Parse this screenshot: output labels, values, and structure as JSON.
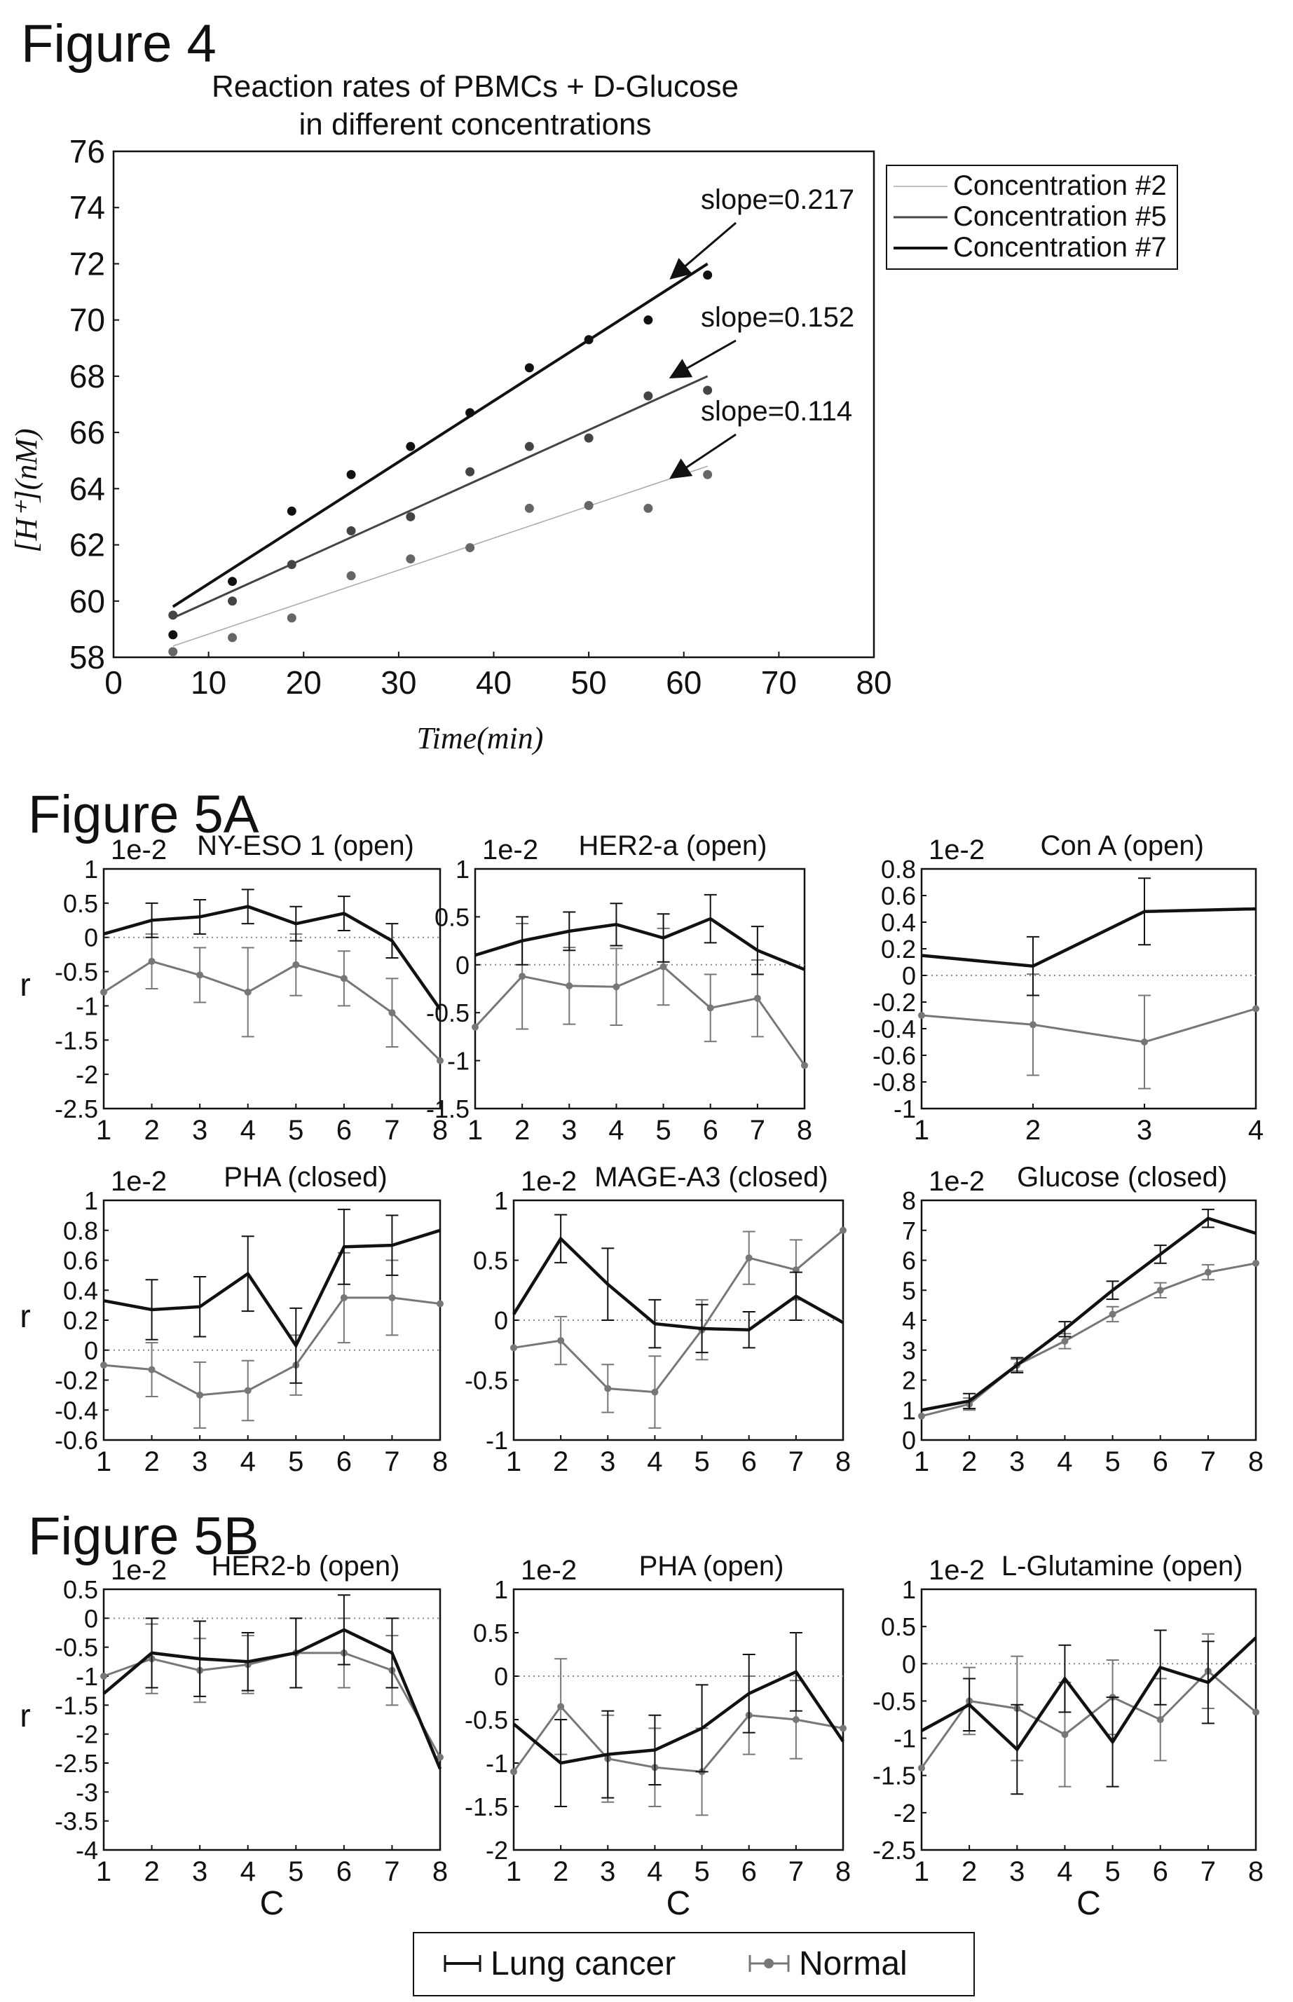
{
  "figure_labels": {
    "fig4": "Figure 4",
    "fig5a": "Figure 5A",
    "fig5b": "Figure 5B"
  },
  "fig4": {
    "title_line1": "Reaction rates of PBMCs + D-Glucose",
    "title_line2": "in different concentrations",
    "ylabel": "[H⁺](nM)",
    "xlabel": "Time(min)",
    "colors": {
      "c2": "#aaaaaa",
      "c5": "#444444",
      "c7": "#111111"
    }
  },
  "fig5": {
    "ylabel": "r",
    "xlabel": "C",
    "scale_label": "1e-2",
    "colors": {
      "lung": "#111111",
      "normal": "#777777"
    }
  },
  "legend": {
    "lung": "Lung cancer",
    "normal": "Normal"
  },
  "chart_data": [
    {
      "id": "fig4",
      "type": "scatter",
      "title": "Reaction rates of PBMCs + D-Glucose in different concentrations",
      "xlabel": "Time(min)",
      "ylabel": "[H+](nM)",
      "xlim": [
        0,
        80
      ],
      "ylim": [
        58,
        76
      ],
      "xticks": [
        0,
        10,
        20,
        30,
        40,
        50,
        60,
        70,
        80
      ],
      "yticks": [
        58,
        60,
        62,
        64,
        66,
        68,
        70,
        72,
        74,
        76
      ],
      "legend_position": "right",
      "series": [
        {
          "name": "Concentration #2",
          "x": [
            6.25,
            12.5,
            18.75,
            25,
            31.25,
            37.5,
            43.75,
            50,
            56.25,
            62.5
          ],
          "y": [
            58.2,
            58.7,
            59.4,
            60.9,
            61.5,
            61.9,
            63.3,
            63.4,
            63.3,
            64.5
          ],
          "fit": {
            "x": [
              6.25,
              62.5
            ],
            "y": [
              58.4,
              64.8
            ]
          },
          "slope_label": "slope=0.114"
        },
        {
          "name": "Concentration #5",
          "x": [
            6.25,
            12.5,
            18.75,
            25,
            31.25,
            37.5,
            43.75,
            50,
            56.25,
            62.5
          ],
          "y": [
            59.5,
            60.0,
            61.3,
            62.5,
            63.0,
            64.6,
            65.5,
            65.8,
            67.3,
            67.5
          ],
          "fit": {
            "x": [
              6.25,
              62.5
            ],
            "y": [
              59.4,
              68.0
            ]
          },
          "slope_label": "slope=0.152"
        },
        {
          "name": "Concentration #7",
          "x": [
            6.25,
            12.5,
            18.75,
            25,
            31.25,
            37.5,
            43.75,
            50,
            56.25,
            62.5
          ],
          "y": [
            58.8,
            60.7,
            63.2,
            64.5,
            65.5,
            66.7,
            68.3,
            69.3,
            70.0,
            71.6
          ],
          "fit": {
            "x": [
              6.25,
              62.5
            ],
            "y": [
              59.8,
              72.0
            ]
          },
          "slope_label": "slope=0.217"
        }
      ]
    },
    {
      "id": "nyeso",
      "type": "line",
      "title": "NY-ESO 1 (open)",
      "ylim": [
        -2.5,
        1.0
      ],
      "yticks": [
        1.0,
        0.5,
        0.0,
        -0.5,
        -1.0,
        -1.5,
        -2.0,
        -2.5
      ],
      "xticks": [
        1,
        2,
        3,
        4,
        5,
        6,
        7,
        8
      ],
      "xlim": [
        1,
        8
      ],
      "series": [
        {
          "name": "Lung cancer",
          "x": [
            1,
            2,
            3,
            4,
            5,
            6,
            7,
            8
          ],
          "y": [
            0.05,
            0.25,
            0.3,
            0.45,
            0.2,
            0.35,
            -0.05,
            -1.05
          ],
          "err": [
            0,
            0.25,
            0.25,
            0.25,
            0.25,
            0.25,
            0.25,
            0
          ]
        },
        {
          "name": "Normal",
          "x": [
            1,
            2,
            3,
            4,
            5,
            6,
            7,
            8
          ],
          "y": [
            -0.8,
            -0.35,
            -0.55,
            -0.8,
            -0.4,
            -0.6,
            -1.1,
            -1.8
          ],
          "err": [
            0,
            0.4,
            0.4,
            0.65,
            0.45,
            0.4,
            0.5,
            0
          ]
        }
      ]
    },
    {
      "id": "her2a",
      "type": "line",
      "title": "HER2-a (open)",
      "ylim": [
        -1.5,
        1.0
      ],
      "yticks": [
        1.0,
        0.5,
        0.0,
        -0.5,
        -1.0,
        -1.5
      ],
      "xticks": [
        1,
        2,
        3,
        4,
        5,
        6,
        7,
        8
      ],
      "xlim": [
        1,
        8
      ],
      "series": [
        {
          "name": "Lung cancer",
          "x": [
            1,
            2,
            3,
            4,
            5,
            6,
            7,
            8
          ],
          "y": [
            0.1,
            0.25,
            0.35,
            0.42,
            0.28,
            0.48,
            0.15,
            -0.05
          ],
          "err": [
            0,
            0.25,
            0.2,
            0.22,
            0.25,
            0.25,
            0.25,
            0
          ]
        },
        {
          "name": "Normal",
          "x": [
            1,
            2,
            3,
            4,
            5,
            6,
            7,
            8
          ],
          "y": [
            -0.65,
            -0.12,
            -0.22,
            -0.23,
            -0.02,
            -0.45,
            -0.35,
            -1.05
          ],
          "err": [
            0,
            0.55,
            0.4,
            0.4,
            0.4,
            0.35,
            0.4,
            0
          ]
        }
      ]
    },
    {
      "id": "cona",
      "type": "line",
      "title": "Con A (open)",
      "ylim": [
        -1.0,
        0.8
      ],
      "yticks": [
        0.8,
        0.6,
        0.4,
        0.2,
        0.0,
        -0.2,
        -0.4,
        -0.6,
        -0.8,
        -1.0
      ],
      "xticks": [
        1,
        2,
        3,
        4
      ],
      "xlim": [
        1,
        4
      ],
      "series": [
        {
          "name": "Lung cancer",
          "x": [
            1,
            2,
            3,
            4
          ],
          "y": [
            0.15,
            0.07,
            0.48,
            0.5
          ],
          "err": [
            0,
            0.22,
            0.25,
            0
          ]
        },
        {
          "name": "Normal",
          "x": [
            1,
            2,
            3,
            4
          ],
          "y": [
            -0.3,
            -0.37,
            -0.5,
            -0.25
          ],
          "err": [
            0,
            0.38,
            0.35,
            0
          ]
        }
      ]
    },
    {
      "id": "pha_closed",
      "type": "line",
      "title": "PHA (closed)",
      "ylim": [
        -0.6,
        1.0
      ],
      "yticks": [
        1.0,
        0.8,
        0.6,
        0.4,
        0.2,
        0.0,
        -0.2,
        -0.4,
        -0.6
      ],
      "xticks": [
        1,
        2,
        3,
        4,
        5,
        6,
        7,
        8
      ],
      "xlim": [
        1,
        8
      ],
      "series": [
        {
          "name": "Lung cancer",
          "x": [
            1,
            2,
            3,
            4,
            5,
            6,
            7,
            8
          ],
          "y": [
            0.33,
            0.27,
            0.29,
            0.51,
            0.03,
            0.69,
            0.7,
            0.8
          ],
          "err": [
            0,
            0.2,
            0.2,
            0.25,
            0.25,
            0.25,
            0.2,
            0
          ]
        },
        {
          "name": "Normal",
          "x": [
            1,
            2,
            3,
            4,
            5,
            6,
            7,
            8
          ],
          "y": [
            -0.1,
            -0.13,
            -0.3,
            -0.27,
            -0.1,
            0.35,
            0.35,
            0.31
          ],
          "err": [
            0,
            0.18,
            0.22,
            0.2,
            0.2,
            0.3,
            0.25,
            0
          ]
        }
      ]
    },
    {
      "id": "magea3",
      "type": "line",
      "title": "MAGE-A3 (closed)",
      "ylim": [
        -1.0,
        1.0
      ],
      "yticks": [
        1.0,
        0.5,
        0.0,
        -0.5,
        -1.0
      ],
      "xticks": [
        1,
        2,
        3,
        4,
        5,
        6,
        7,
        8
      ],
      "xlim": [
        1,
        8
      ],
      "series": [
        {
          "name": "Lung cancer",
          "x": [
            1,
            2,
            3,
            4,
            5,
            6,
            7,
            8
          ],
          "y": [
            0.05,
            0.68,
            0.3,
            -0.03,
            -0.07,
            -0.08,
            0.2,
            -0.02
          ],
          "err": [
            0,
            0.2,
            0.3,
            0.2,
            0.2,
            0.15,
            0.2,
            0
          ]
        },
        {
          "name": "Normal",
          "x": [
            1,
            2,
            3,
            4,
            5,
            6,
            7,
            8
          ],
          "y": [
            -0.23,
            -0.17,
            -0.57,
            -0.6,
            -0.08,
            0.52,
            0.42,
            0.75
          ],
          "err": [
            0,
            0.2,
            0.2,
            0.3,
            0.25,
            0.22,
            0.25,
            0
          ]
        }
      ]
    },
    {
      "id": "glucose",
      "type": "line",
      "title": "Glucose (closed)",
      "ylim": [
        0,
        8
      ],
      "yticks": [
        8,
        7,
        6,
        5,
        4,
        3,
        2,
        1,
        0
      ],
      "xticks": [
        1,
        2,
        3,
        4,
        5,
        6,
        7,
        8
      ],
      "xlim": [
        1,
        8
      ],
      "series": [
        {
          "name": "Lung cancer",
          "x": [
            1,
            2,
            3,
            4,
            5,
            6,
            7,
            8
          ],
          "y": [
            1.0,
            1.3,
            2.5,
            3.7,
            5.0,
            6.2,
            7.4,
            6.9
          ],
          "err": [
            0,
            0.25,
            0.25,
            0.25,
            0.3,
            0.3,
            0.3,
            0
          ]
        },
        {
          "name": "Normal",
          "x": [
            1,
            2,
            3,
            4,
            5,
            6,
            7,
            8
          ],
          "y": [
            0.8,
            1.2,
            2.5,
            3.3,
            4.2,
            5.0,
            5.6,
            5.9
          ],
          "err": [
            0,
            0.2,
            0.2,
            0.25,
            0.25,
            0.25,
            0.25,
            0
          ]
        }
      ]
    },
    {
      "id": "her2b",
      "type": "line",
      "title": "HER2-b (open)",
      "ylim": [
        -4.0,
        0.5
      ],
      "yticks": [
        0.5,
        0.0,
        -0.5,
        -1.0,
        -1.5,
        -2.0,
        -2.5,
        -3.0,
        -3.5,
        -4.0
      ],
      "xticks": [
        1,
        2,
        3,
        4,
        5,
        6,
        7,
        8
      ],
      "xlim": [
        1,
        8
      ],
      "series": [
        {
          "name": "Lung cancer",
          "x": [
            1,
            2,
            3,
            4,
            5,
            6,
            7,
            8
          ],
          "y": [
            -1.3,
            -0.6,
            -0.7,
            -0.75,
            -0.6,
            -0.2,
            -0.6,
            -2.6
          ],
          "err": [
            0,
            0.6,
            0.65,
            0.5,
            0.6,
            0.6,
            0.6,
            0
          ]
        },
        {
          "name": "Normal",
          "x": [
            1,
            2,
            3,
            4,
            5,
            6,
            7,
            8
          ],
          "y": [
            -1.0,
            -0.7,
            -0.9,
            -0.8,
            -0.6,
            -0.6,
            -0.9,
            -2.4
          ],
          "err": [
            0,
            0.6,
            0.55,
            0.5,
            0.6,
            0.6,
            0.6,
            0
          ]
        }
      ]
    },
    {
      "id": "pha_open",
      "type": "line",
      "title": "PHA (open)",
      "ylim": [
        -2.0,
        1.0
      ],
      "yticks": [
        1.0,
        0.5,
        0.0,
        -0.5,
        -1.0,
        -1.5,
        -2.0
      ],
      "xticks": [
        1,
        2,
        3,
        4,
        5,
        6,
        7,
        8
      ],
      "xlim": [
        1,
        8
      ],
      "series": [
        {
          "name": "Lung cancer",
          "x": [
            1,
            2,
            3,
            4,
            5,
            6,
            7,
            8
          ],
          "y": [
            -0.55,
            -1.0,
            -0.9,
            -0.85,
            -0.6,
            -0.2,
            0.05,
            -0.75
          ],
          "err": [
            0,
            0.5,
            0.5,
            0.4,
            0.5,
            0.45,
            0.45,
            0
          ]
        },
        {
          "name": "Normal",
          "x": [
            1,
            2,
            3,
            4,
            5,
            6,
            7,
            8
          ],
          "y": [
            -1.1,
            -0.35,
            -0.95,
            -1.05,
            -1.1,
            -0.45,
            -0.5,
            -0.6
          ],
          "err": [
            0,
            0.55,
            0.5,
            0.45,
            0.5,
            0.45,
            0.45,
            0
          ]
        }
      ]
    },
    {
      "id": "lglut",
      "type": "line",
      "title": "L-Glutamine (open)",
      "ylim": [
        -2.5,
        1.0
      ],
      "yticks": [
        1.0,
        0.5,
        0.0,
        -0.5,
        -1.0,
        -1.5,
        -2.0,
        -2.5
      ],
      "xticks": [
        1,
        2,
        3,
        4,
        5,
        6,
        7,
        8
      ],
      "xlim": [
        1,
        8
      ],
      "series": [
        {
          "name": "Lung cancer",
          "x": [
            1,
            2,
            3,
            4,
            5,
            6,
            7,
            8
          ],
          "y": [
            -0.9,
            -0.55,
            -1.15,
            -0.2,
            -1.05,
            -0.05,
            -0.25,
            0.35
          ],
          "err": [
            0,
            0.35,
            0.6,
            0.45,
            0.6,
            0.5,
            0.55,
            0
          ]
        },
        {
          "name": "Normal",
          "x": [
            1,
            2,
            3,
            4,
            5,
            6,
            7,
            8
          ],
          "y": [
            -1.4,
            -0.5,
            -0.6,
            -0.95,
            -0.45,
            -0.75,
            -0.1,
            -0.65
          ],
          "err": [
            0,
            0.45,
            0.7,
            0.7,
            0.5,
            0.55,
            0.5,
            0
          ]
        }
      ]
    }
  ]
}
